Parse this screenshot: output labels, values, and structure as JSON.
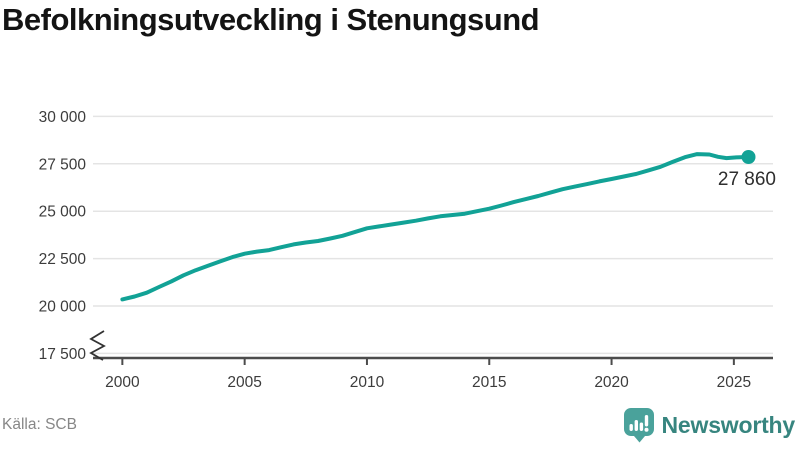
{
  "title": "Befolkningsutveckling i Stenungsund",
  "source": "Källa: SCB",
  "brand": {
    "name": "Newsworthy"
  },
  "colors": {
    "line": "#12a296",
    "grid": "#e4e4e4",
    "axis": "#4c4c4c",
    "tick_text": "#3c3c3c",
    "title_text": "#141414",
    "source_text": "#878787",
    "end_label_text": "#2e2e2e",
    "brand_teal": "#37857f",
    "brand_bubble": "#4aa29b",
    "background": "#ffffff"
  },
  "chart_data": {
    "type": "line",
    "title": "Befolkningsutveckling i Stenungsund",
    "xlabel": "",
    "ylabel": "",
    "xlim": [
      1998.8,
      2026.6
    ],
    "ylim": [
      17500,
      30000
    ],
    "x_ticks": [
      2000,
      2005,
      2010,
      2015,
      2020,
      2025
    ],
    "x_tick_labels": [
      "2000",
      "2005",
      "2010",
      "2015",
      "2020",
      "2025"
    ],
    "y_ticks": [
      17500,
      20000,
      22500,
      25000,
      27500,
      30000
    ],
    "y_tick_labels": [
      "17 500",
      "20 000",
      "22 500",
      "25 000",
      "27 500",
      "30 000"
    ],
    "grid": "horizontal",
    "axis_break": true,
    "legend": "none",
    "end_label": "27 860",
    "end_value": 27860,
    "series": [
      {
        "name": "Stenungsund",
        "points": [
          [
            2000,
            20350
          ],
          [
            2000.5,
            20500
          ],
          [
            2001,
            20700
          ],
          [
            2001.5,
            21000
          ],
          [
            2002,
            21300
          ],
          [
            2002.5,
            21620
          ],
          [
            2003,
            21890
          ],
          [
            2003.5,
            22120
          ],
          [
            2004,
            22350
          ],
          [
            2004.5,
            22580
          ],
          [
            2005,
            22760
          ],
          [
            2005.5,
            22870
          ],
          [
            2006,
            22950
          ],
          [
            2006.5,
            23100
          ],
          [
            2007,
            23250
          ],
          [
            2007.5,
            23350
          ],
          [
            2008,
            23430
          ],
          [
            2008.5,
            23560
          ],
          [
            2009,
            23700
          ],
          [
            2009.5,
            23900
          ],
          [
            2010,
            24100
          ],
          [
            2010.5,
            24200
          ],
          [
            2011,
            24300
          ],
          [
            2011.5,
            24400
          ],
          [
            2012,
            24500
          ],
          [
            2012.5,
            24620
          ],
          [
            2013,
            24730
          ],
          [
            2013.5,
            24800
          ],
          [
            2014,
            24870
          ],
          [
            2014.5,
            25000
          ],
          [
            2015,
            25130
          ],
          [
            2015.5,
            25300
          ],
          [
            2016,
            25480
          ],
          [
            2016.5,
            25640
          ],
          [
            2017,
            25800
          ],
          [
            2017.5,
            25980
          ],
          [
            2018,
            26160
          ],
          [
            2018.5,
            26300
          ],
          [
            2019,
            26430
          ],
          [
            2019.5,
            26570
          ],
          [
            2020,
            26700
          ],
          [
            2020.5,
            26830
          ],
          [
            2021,
            26960
          ],
          [
            2021.5,
            27150
          ],
          [
            2022,
            27340
          ],
          [
            2022.5,
            27600
          ],
          [
            2023,
            27850
          ],
          [
            2023.5,
            28010
          ],
          [
            2024,
            27990
          ],
          [
            2024.35,
            27870
          ],
          [
            2024.7,
            27800
          ],
          [
            2025.1,
            27840
          ],
          [
            2025.6,
            27860
          ]
        ]
      }
    ]
  }
}
